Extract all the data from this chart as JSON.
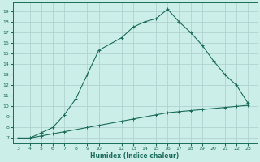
{
  "xlabel": "Humidex (Indice chaleur)",
  "x_main": [
    3,
    4,
    5,
    6,
    7,
    8,
    9,
    10,
    12,
    13,
    14,
    15,
    16,
    17,
    18,
    19,
    20,
    21,
    22,
    23
  ],
  "y_main": [
    7,
    7,
    7.5,
    8.0,
    9.2,
    10.7,
    13.0,
    15.3,
    16.5,
    17.5,
    18.0,
    18.3,
    19.2,
    18.0,
    17.0,
    15.8,
    14.3,
    13.0,
    12.0,
    10.3
  ],
  "x_lower": [
    3,
    4,
    5,
    6,
    7,
    8,
    9,
    10,
    12,
    13,
    14,
    15,
    16,
    17,
    18,
    19,
    20,
    21,
    22,
    23
  ],
  "y_lower": [
    7.0,
    7.0,
    7.2,
    7.4,
    7.6,
    7.8,
    8.0,
    8.2,
    8.6,
    8.8,
    9.0,
    9.2,
    9.4,
    9.5,
    9.6,
    9.7,
    9.8,
    9.9,
    10.0,
    10.1
  ],
  "line_color": "#1a6b5a",
  "bg_color": "#cceee8",
  "grid_color": "#aacccc",
  "tick_color": "#1a6b5a",
  "label_color": "#1a6b5a",
  "ylim": [
    6.5,
    19.8
  ],
  "xlim": [
    2.5,
    23.8
  ],
  "xticks": [
    3,
    4,
    5,
    6,
    7,
    8,
    9,
    10,
    12,
    13,
    14,
    15,
    16,
    17,
    18,
    19,
    20,
    21,
    22,
    23
  ],
  "yticks": [
    7,
    8,
    9,
    10,
    11,
    12,
    13,
    14,
    15,
    16,
    17,
    18,
    19
  ]
}
